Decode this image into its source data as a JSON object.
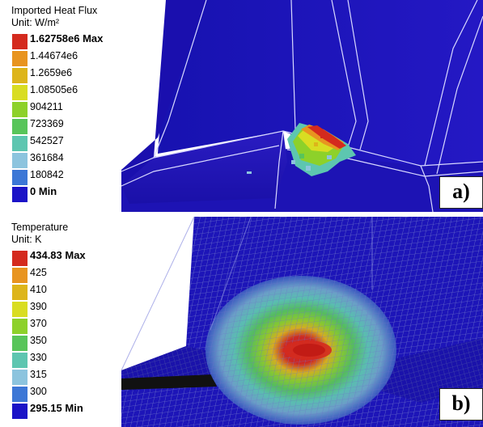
{
  "panel_a": {
    "title": "Imported Heat Flux",
    "unit": "Unit: W/m²",
    "levels": [
      "1.62758e6 Max",
      "1.44674e6",
      "1.2659e6",
      "1.08505e6",
      "904211",
      "723369",
      "542527",
      "361684",
      "180842",
      "0 Min"
    ],
    "colors": [
      "#d42a1e",
      "#e89420",
      "#ddb51a",
      "#d9dd22",
      "#8dd12a",
      "#58c55a",
      "#5dc6b0",
      "#8cc4de",
      "#3c77d6",
      "#1b13c7"
    ],
    "label": "a)"
  },
  "panel_b": {
    "title": "Temperature",
    "unit": "Unit: K",
    "levels": [
      "434.83 Max",
      "425",
      "410",
      "390",
      "370",
      "350",
      "330",
      "315",
      "300",
      "295.15 Min"
    ],
    "colors": [
      "#d42a1e",
      "#e89420",
      "#ddb51a",
      "#d9dd22",
      "#8dd12a",
      "#58c55a",
      "#5dc6b0",
      "#8cc4de",
      "#3c77d6",
      "#1b13c7"
    ],
    "label": "b)"
  }
}
